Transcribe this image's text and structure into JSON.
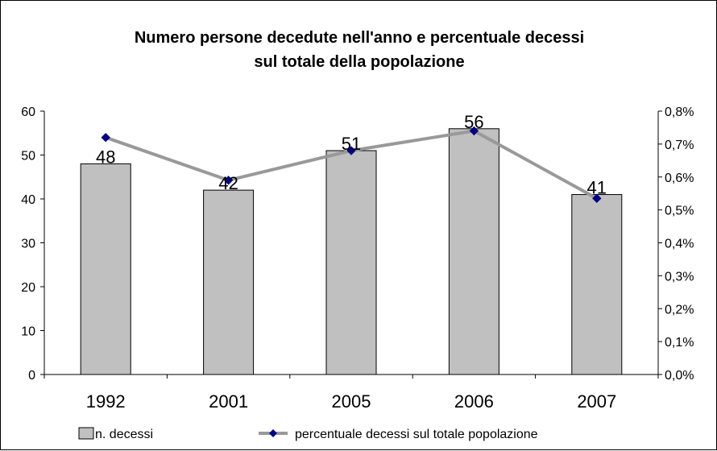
{
  "chart_data": {
    "type": "bar",
    "title_lines": [
      "Numero persone decedute nell'anno e percentuale decessi",
      "sul totale della popolazione"
    ],
    "categories": [
      "1992",
      "2001",
      "2005",
      "2006",
      "2007"
    ],
    "series": [
      {
        "name": "n. decessi",
        "type": "bar",
        "axis": "left",
        "values": [
          48,
          42,
          51,
          56,
          41
        ],
        "data_labels": [
          "48",
          "42",
          "51",
          "56",
          "41"
        ],
        "color": "#c0c0c0"
      },
      {
        "name": "percentuale decessi sul totale popolazione",
        "type": "line",
        "axis": "right",
        "values": [
          0.72,
          0.59,
          0.68,
          0.74,
          0.535
        ],
        "line_color": "#999999",
        "marker_color": "#000080"
      }
    ],
    "y_left": {
      "ylim": [
        0,
        60
      ],
      "ticks": [
        "0",
        "10",
        "20",
        "30",
        "40",
        "50",
        "60"
      ]
    },
    "y_right": {
      "ylim": [
        0,
        0.8
      ],
      "ticks": [
        "0,0%",
        "0,1%",
        "0,2%",
        "0,3%",
        "0,4%",
        "0,5%",
        "0,6%",
        "0,7%",
        "0,8%"
      ]
    },
    "grid": false,
    "legend_position": "bottom"
  }
}
